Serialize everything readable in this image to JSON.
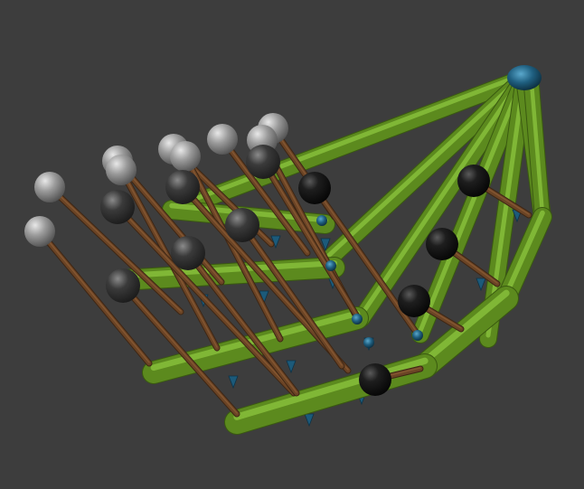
{
  "viewport": {
    "background": "#3d3d3d"
  },
  "colors": {
    "frame_green": "#5c8a1e",
    "frame_green_light": "#8cc63f",
    "frame_green_dark": "#3a5a10",
    "stick_brown": "#6b4425",
    "ball_black": "#141414",
    "ball_grey": "#9a9a9a",
    "joint_blue": "#1f5f80",
    "spike_blue": "#1c5a7a"
  },
  "scene": {
    "description_icon": "3d-tensegrity-structure"
  }
}
